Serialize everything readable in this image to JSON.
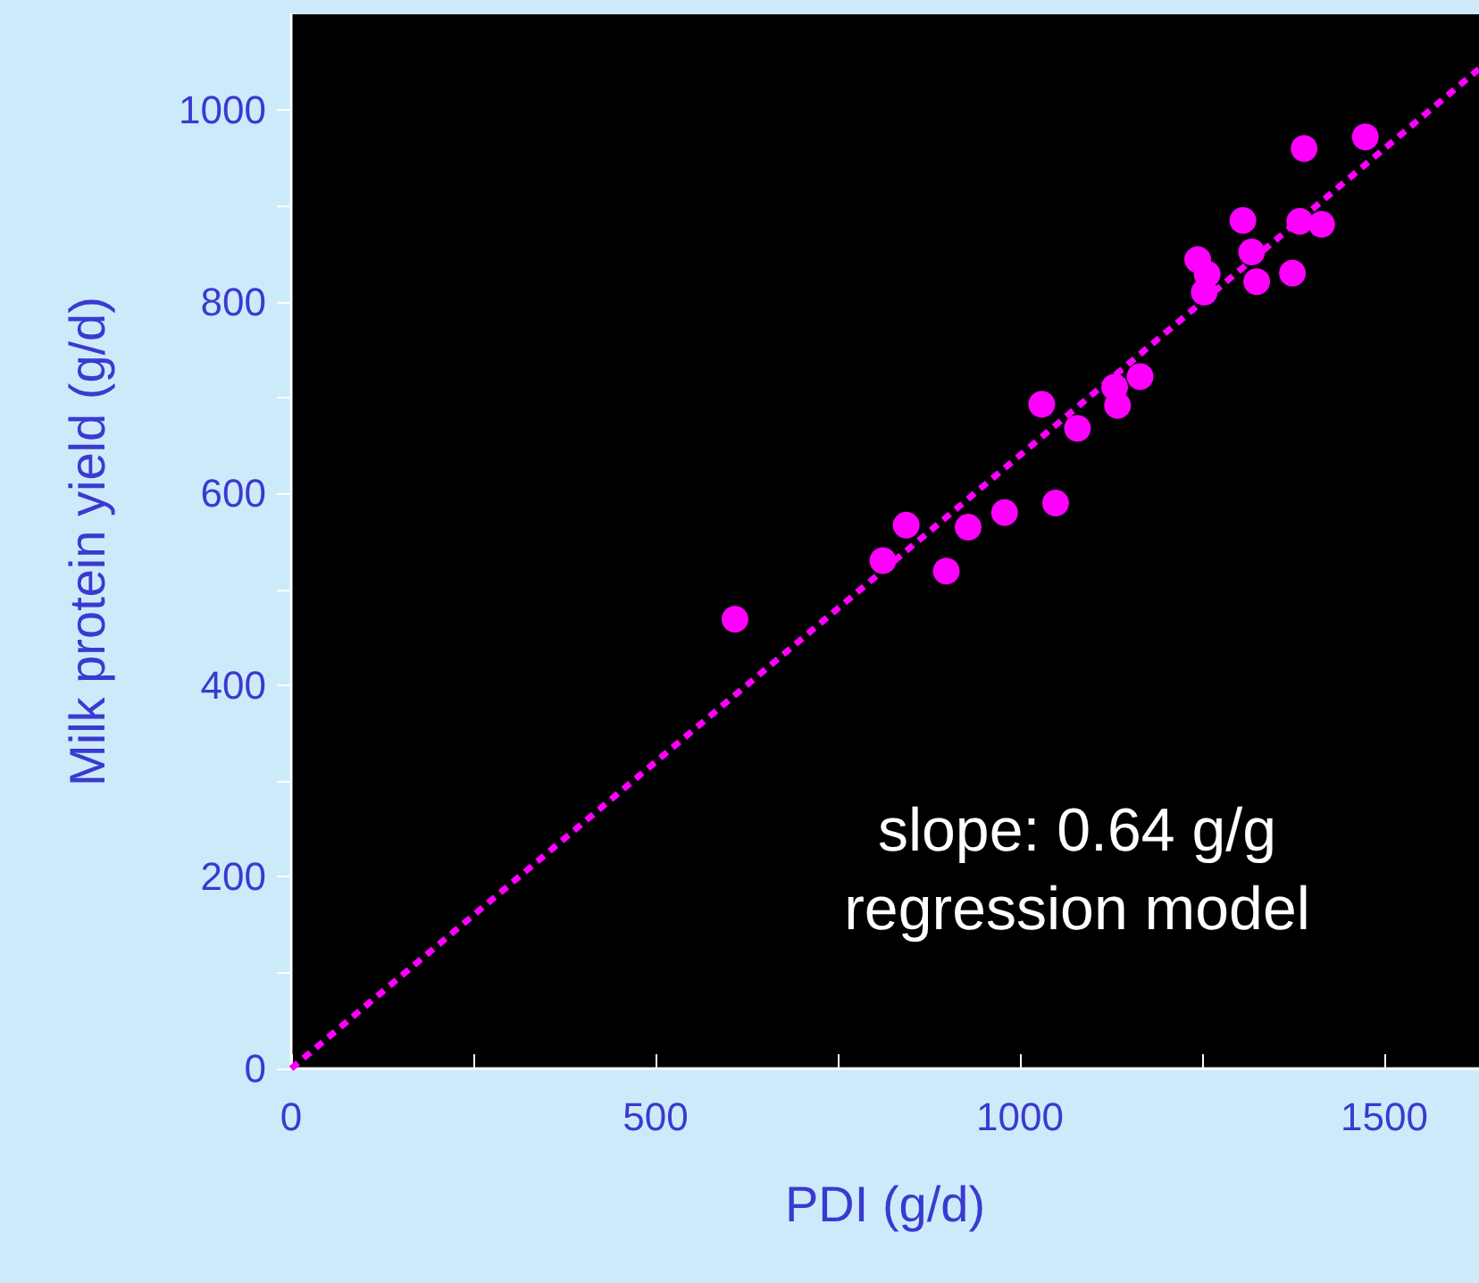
{
  "chart_data": {
    "type": "scatter",
    "xlabel": "PDI (g/d)",
    "ylabel": "Milk protein yield (g/d)",
    "annotations": [
      "slope: 0.64 g/g",
      "regression model"
    ],
    "xlim": [
      0,
      1630
    ],
    "ylim": [
      0,
      1100
    ],
    "xticks": [
      0,
      {
        "value": 250,
        "label": null
      },
      500,
      {
        "value": 750,
        "label": null
      },
      1000,
      {
        "value": 1250,
        "label": null
      },
      1500
    ],
    "yticks": [
      0,
      {
        "value": 100,
        "label": null
      },
      200,
      {
        "value": 300,
        "label": null
      },
      400,
      {
        "value": 500,
        "label": null
      },
      600,
      {
        "value": 700,
        "label": null
      },
      800,
      {
        "value": 900,
        "label": null
      },
      1000
    ],
    "grid": false,
    "series": [
      {
        "color": "#ff00ff",
        "marker": "circle",
        "x": [
          609,
          812,
          844,
          899,
          929,
          979,
          1030,
          1049,
          1079,
          1130,
          1134,
          1165,
          1244,
          1257,
          1253,
          1306,
          1318,
          1325,
          1374,
          1384,
          1390,
          1414,
          1474
        ],
        "values": [
          469,
          530,
          567,
          519,
          565,
          580,
          693,
          590,
          668,
          711,
          692,
          722,
          844,
          829,
          810,
          885,
          852,
          821,
          830,
          884,
          960,
          881,
          972
        ]
      },
      {
        "type": "line",
        "color": "#ff00ff",
        "marker": "none",
        "line_style": "dashed",
        "x": [
          0,
          1630
        ],
        "values": [
          0,
          1043
        ]
      }
    ]
  }
}
